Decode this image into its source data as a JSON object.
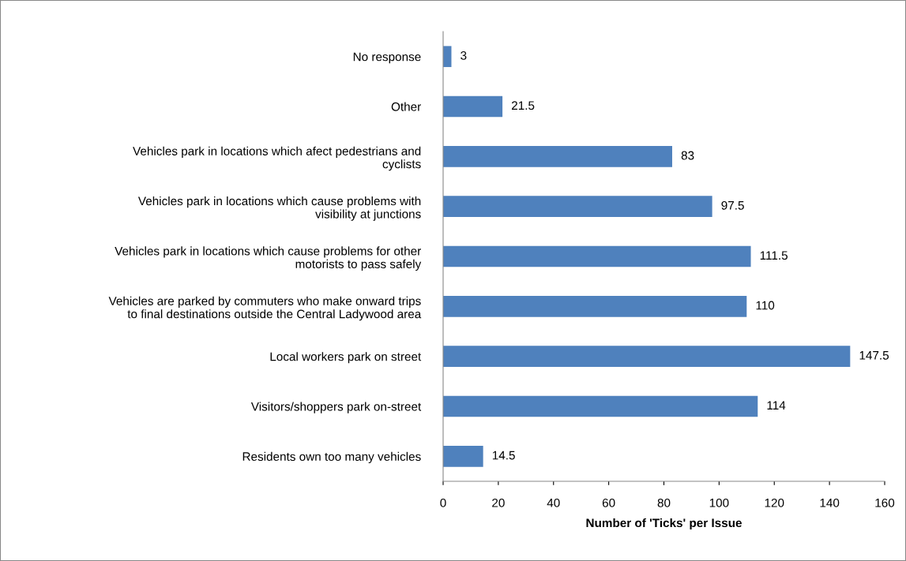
{
  "chart_data": {
    "type": "bar",
    "orientation": "horizontal",
    "xlabel": "Number of 'Ticks' per Issue",
    "categories": [
      "No response",
      "Other",
      "Vehicles park in locations which afect pedestrians and\ncyclists",
      "Vehicles park in locations which cause problems with\nvisibility at junctions",
      "Vehicles park in locations which cause problems for other\nmotorists to pass safely",
      "Vehicles are parked by commuters who make onward trips\nto final destinations outside the Central Ladywood area",
      "Local workers park on street",
      "Visitors/shoppers park on-street",
      "Residents own too many vehicles"
    ],
    "values": [
      3,
      21.5,
      83,
      97.5,
      111.5,
      110,
      147.5,
      114,
      14.5
    ],
    "color": "#4f81bd",
    "data_labels": true,
    "xlim": [
      0,
      160
    ],
    "xticks": [
      0,
      20,
      40,
      60,
      80,
      100,
      120,
      140,
      160
    ],
    "grid": false,
    "legend": false
  }
}
